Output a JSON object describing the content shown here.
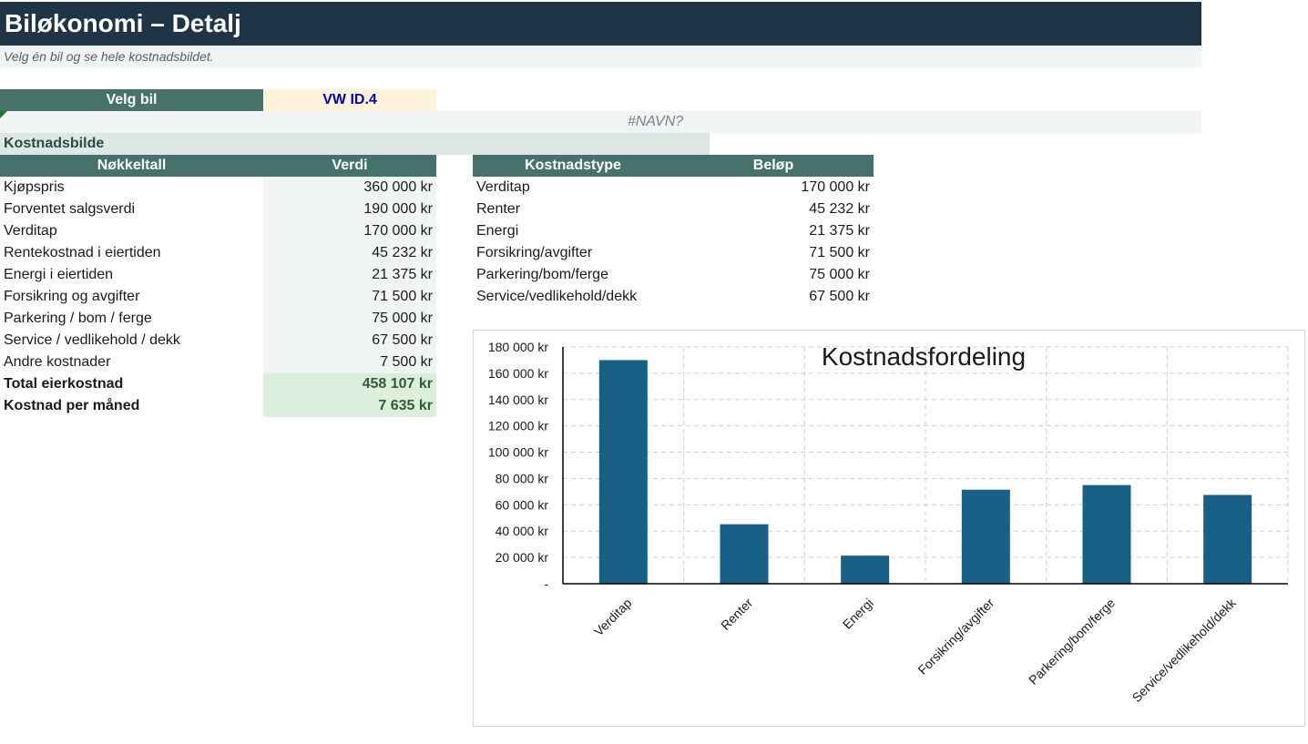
{
  "header": {
    "title": "Biløkonomi – Detalj",
    "subtitle": "Velg én bil og se hele kostnadsbildet."
  },
  "selector": {
    "label": "Velg bil",
    "value": "VW ID.4"
  },
  "name_error": "#NAVN?",
  "section_title": "Kostnadsbilde",
  "key_table": {
    "headers": [
      "Nøkkeltall",
      "Verdi"
    ],
    "rows": [
      {
        "label": "Kjøpspris",
        "value": "360 000 kr"
      },
      {
        "label": "Forventet salgsverdi",
        "value": "190 000 kr"
      },
      {
        "label": "Verditap",
        "value": "170 000 kr"
      },
      {
        "label": "Rentekostnad i eiertiden",
        "value": "45 232 kr"
      },
      {
        "label": "Energi i eiertiden",
        "value": "21 375 kr"
      },
      {
        "label": "Forsikring og avgifter",
        "value": "71 500 kr"
      },
      {
        "label": "Parkering / bom / ferge",
        "value": "75 000 kr"
      },
      {
        "label": "Service / vedlikehold / dekk",
        "value": "67 500 kr"
      },
      {
        "label": "Andre kostnader",
        "value": "7 500 kr"
      }
    ],
    "totals": [
      {
        "label": "Total eierkostnad",
        "value": "458 107 kr"
      },
      {
        "label": "Kostnad per måned",
        "value": "7 635 kr"
      }
    ]
  },
  "cost_table": {
    "headers": [
      "Kostnadstype",
      "Beløp"
    ],
    "rows": [
      {
        "label": "Verditap",
        "value": "170 000 kr"
      },
      {
        "label": "Renter",
        "value": "45 232 kr"
      },
      {
        "label": "Energi",
        "value": "21 375 kr"
      },
      {
        "label": "Forsikring/avgifter",
        "value": "71 500 kr"
      },
      {
        "label": "Parkering/bom/ferge",
        "value": "75 000 kr"
      },
      {
        "label": "Service/vedlikehold/dekk",
        "value": "67 500 kr"
      }
    ]
  },
  "colors": {
    "title_bg": "#1f3447",
    "header_bg": "#45736b",
    "bar": "#176186",
    "selector_value": "#0000cc"
  },
  "chart_data": {
    "type": "bar",
    "title": "Kostnadsfordeling",
    "categories": [
      "Verditap",
      "Renter",
      "Energi",
      "Forsikring/avgifter",
      "Parkering/bom/ferge",
      "Service/vedlikehold/dekk"
    ],
    "values": [
      170000,
      45232,
      21375,
      71500,
      75000,
      67500
    ],
    "ylim": [
      0,
      180000
    ],
    "yticks": [
      {
        "value": 0,
        "label": "-"
      },
      {
        "value": 20000,
        "label": "20 000 kr"
      },
      {
        "value": 40000,
        "label": "40 000 kr"
      },
      {
        "value": 60000,
        "label": "60 000 kr"
      },
      {
        "value": 80000,
        "label": "80 000 kr"
      },
      {
        "value": 100000,
        "label": "100 000 kr"
      },
      {
        "value": 120000,
        "label": "120 000 kr"
      },
      {
        "value": 140000,
        "label": "140 000 kr"
      },
      {
        "value": 160000,
        "label": "160 000 kr"
      },
      {
        "value": 180000,
        "label": "180 000 kr"
      }
    ],
    "grid": true,
    "grid_style": "dashed",
    "legend": "none"
  }
}
